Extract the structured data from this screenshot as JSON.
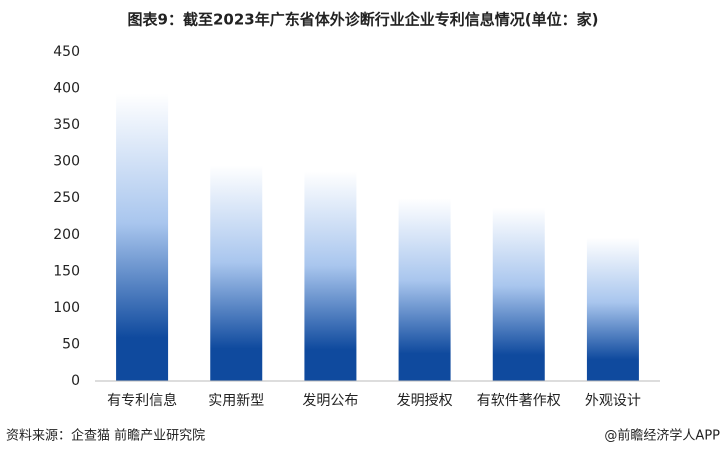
{
  "chart_data": {
    "type": "bar",
    "title": "图表9：截至2023年广东省体外诊断行业企业专利信息情况(单位：家)",
    "categories": [
      "有专利信息",
      "实用新型",
      "发明公布",
      "发明授权",
      "有软件著作权",
      "外观设计"
    ],
    "values": [
      393,
      295,
      287,
      250,
      237,
      196
    ],
    "color": "#0f4a9e",
    "ylim": [
      0,
      450
    ],
    "yticks": [
      0,
      50,
      100,
      150,
      200,
      250,
      300,
      350,
      400,
      450
    ],
    "grid": false
  },
  "footer": {
    "source": "资料来源：企查猫 前瞻产业研究院",
    "credit": "@前瞻经济学人APP"
  }
}
